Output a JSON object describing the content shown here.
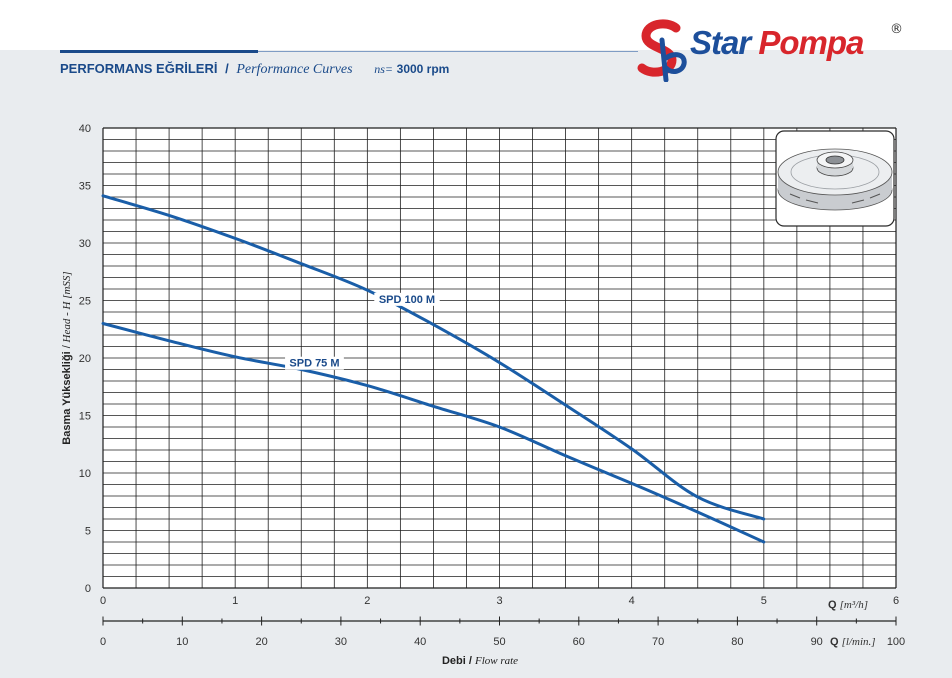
{
  "header": {
    "title_tr": "PERFORMANS EĞRİLERİ",
    "separator": "/",
    "title_en": "Performance Curves",
    "speed_symbol": "ns=",
    "speed_value": "3000 rpm"
  },
  "brand": {
    "word1": "Star",
    "word2": "Pompa",
    "registered": "®",
    "colors": {
      "blue": "#1d4f9b",
      "red": "#d8262c"
    }
  },
  "chart_data": {
    "type": "line",
    "y_axis": {
      "label_tr": "Basma Yüksekliği",
      "label_sep": "/",
      "label_en": "Head - H [mSS]",
      "range": [
        0,
        40
      ],
      "ticks": [
        "0",
        "5",
        "10",
        "15",
        "20",
        "25",
        "30",
        "35",
        "40"
      ]
    },
    "x_axis_primary": {
      "label_q": "Q",
      "unit": "[m³/h]",
      "range": [
        0,
        6
      ],
      "ticks": [
        "0",
        "1",
        "2",
        "3",
        "4",
        "5",
        "6"
      ]
    },
    "x_axis_secondary": {
      "label_q": "Q",
      "unit": "[l/min.]",
      "range": [
        0,
        100
      ],
      "ticks": [
        "0",
        "10",
        "20",
        "30",
        "40",
        "50",
        "60",
        "70",
        "80",
        "90",
        "100"
      ]
    },
    "x_caption": {
      "tr": "Debi",
      "sep": "/",
      "en": "Flow rate"
    },
    "grid": true,
    "line_color": "#1a5ea8",
    "series": [
      {
        "name": "SPD 100 M",
        "points": [
          [
            0,
            34.1
          ],
          [
            0.5,
            32.4
          ],
          [
            1.0,
            30.4
          ],
          [
            1.5,
            28.2
          ],
          [
            2.0,
            25.9
          ],
          [
            2.5,
            22.9
          ],
          [
            3.0,
            19.6
          ],
          [
            3.5,
            15.9
          ],
          [
            4.0,
            12.1
          ],
          [
            4.5,
            7.9
          ],
          [
            5.0,
            6.0
          ]
        ]
      },
      {
        "name": "SPD 75 M",
        "points": [
          [
            0,
            23.0
          ],
          [
            0.5,
            21.5
          ],
          [
            1.0,
            20.1
          ],
          [
            1.5,
            19.0
          ],
          [
            2.0,
            17.6
          ],
          [
            2.5,
            15.8
          ],
          [
            3.0,
            14.0
          ],
          [
            3.5,
            11.5
          ],
          [
            4.0,
            9.1
          ],
          [
            4.5,
            6.6
          ],
          [
            5.0,
            4.0
          ]
        ]
      }
    ],
    "inset": {
      "description": "impeller-image"
    }
  }
}
